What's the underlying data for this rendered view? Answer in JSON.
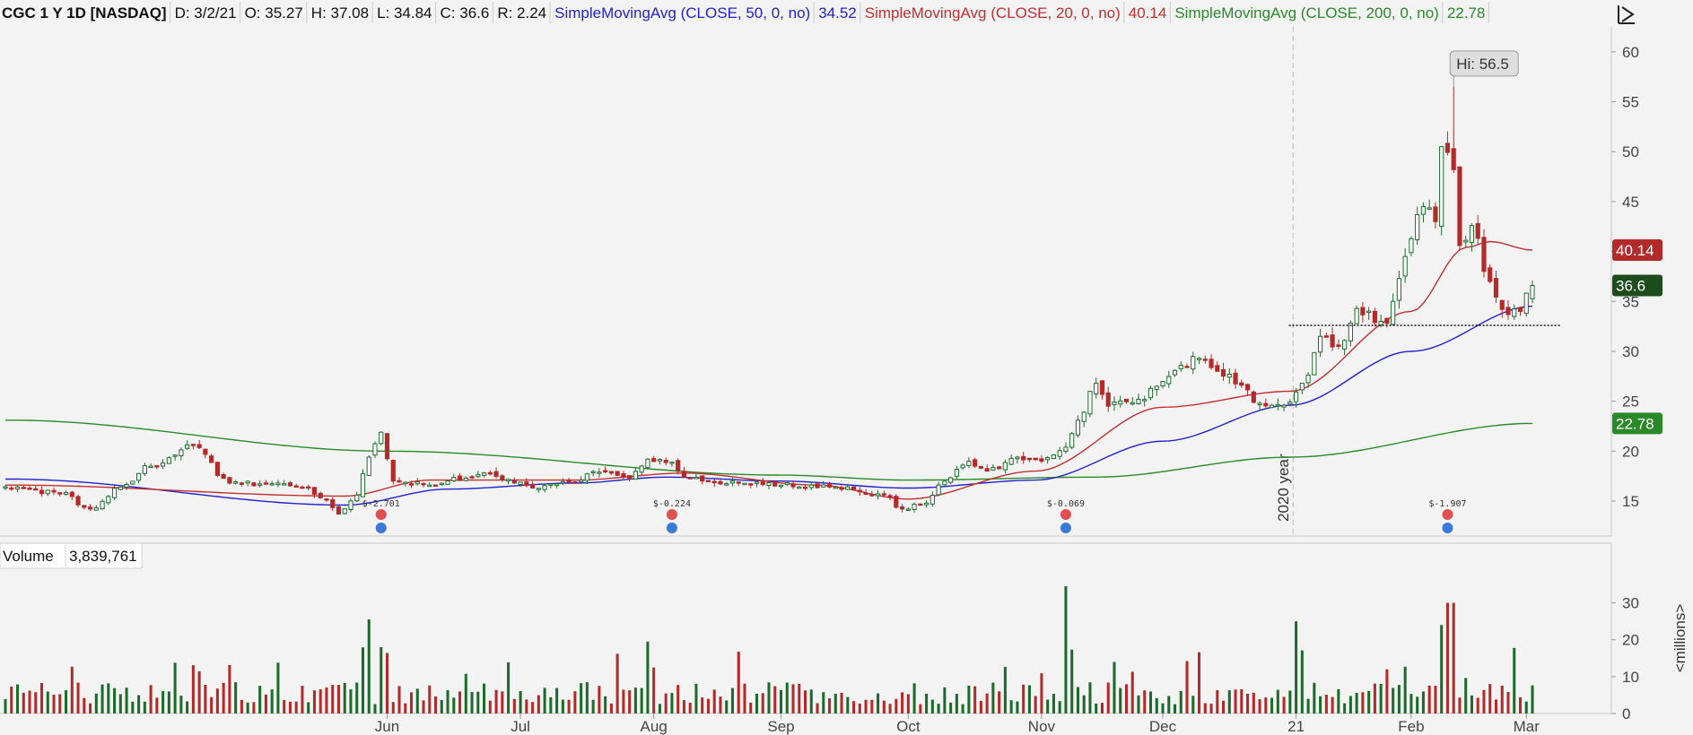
{
  "header": {
    "symbol": "CGC 1 Y 1D [NASDAQ]",
    "date": "D: 3/2/21",
    "open": "O: 35.27",
    "high": "H: 37.08",
    "low": "L: 34.84",
    "close": "C: 36.6",
    "range": "R: 2.24",
    "studies": [
      {
        "label": "SimpleMovingAvg (CLOSE, 50, 0, no)",
        "value": "34.52",
        "color": "#2222cc"
      },
      {
        "label": "SimpleMovingAvg (CLOSE, 20, 0, no)",
        "value": "40.14",
        "color": "#c03030"
      },
      {
        "label": "SimpleMovingAvg (CLOSE, 200, 0, no)",
        "value": "22.78",
        "color": "#2a8a2a"
      }
    ]
  },
  "volume_panel": {
    "label": "Volume",
    "value": "3,839,761",
    "unit_label": "<millions>"
  },
  "annotations": {
    "high_label": "Hi: 56.5",
    "year_label": "2020 year",
    "price_badges": [
      {
        "text": "40.14",
        "value": 40.14,
        "color": "#b22a2a"
      },
      {
        "text": "36.6",
        "value": 36.6,
        "color": "#1d4d1d"
      },
      {
        "text": "22.78",
        "value": 22.78,
        "color": "#2a8a2a"
      }
    ],
    "support_level": 32.6,
    "earnings": [
      {
        "date": "2020-05-29",
        "text": "$-2.701"
      },
      {
        "date": "2020-08-06",
        "text": "$-0.224"
      },
      {
        "date": "2020-11-06",
        "text": "$-0.069"
      },
      {
        "date": "2021-02-09",
        "text": "$-1.907"
      }
    ]
  },
  "colors": {
    "up": "#1d6b2c",
    "down": "#b22a2a",
    "background": "#f3f3f3"
  },
  "chart_data": {
    "type": "candlestick",
    "x_tick_labels": [
      {
        "date": "2020-06-01",
        "label": "Jun"
      },
      {
        "date": "2020-07-01",
        "label": "Jul"
      },
      {
        "date": "2020-08-03",
        "label": "Aug"
      },
      {
        "date": "2020-09-01",
        "label": "Sep"
      },
      {
        "date": "2020-10-01",
        "label": "Oct"
      },
      {
        "date": "2020-11-02",
        "label": "Nov"
      },
      {
        "date": "2020-12-01",
        "label": "Dec"
      },
      {
        "date": "2021-01-04",
        "label": "21"
      },
      {
        "date": "2021-02-01",
        "label": "Feb"
      },
      {
        "date": "2021-03-01",
        "label": "Mar"
      }
    ],
    "price_axis": {
      "ylim": [
        11.5,
        62.5
      ],
      "ticks": [
        15,
        20,
        25,
        30,
        35,
        40,
        45,
        50,
        55,
        60
      ]
    },
    "volume_axis": {
      "ylim": [
        0,
        35
      ],
      "ticks": [
        0,
        10,
        20,
        30
      ],
      "unit": "millions"
    },
    "price_anchors": [
      [
        "2020-03-03",
        16.3
      ],
      [
        "2020-03-13",
        15.8
      ],
      [
        "2020-03-20",
        14.2
      ],
      [
        "2020-03-27",
        16.4
      ],
      [
        "2020-04-03",
        18.5
      ],
      [
        "2020-04-15",
        20.6
      ],
      [
        "2020-04-23",
        16.8
      ],
      [
        "2020-05-01",
        16.7
      ],
      [
        "2020-05-11",
        16.3
      ],
      [
        "2020-05-15",
        15.2
      ],
      [
        "2020-05-19",
        13.7
      ],
      [
        "2020-05-22",
        15.6
      ],
      [
        "2020-05-27",
        19.4
      ],
      [
        "2020-05-29",
        21.9
      ],
      [
        "2020-06-02",
        17.0
      ],
      [
        "2020-06-10",
        16.6
      ],
      [
        "2020-06-18",
        17.3
      ],
      [
        "2020-06-24",
        17.8
      ],
      [
        "2020-06-30",
        16.8
      ],
      [
        "2020-07-06",
        16.3
      ],
      [
        "2020-07-14",
        16.9
      ],
      [
        "2020-07-21",
        17.9
      ],
      [
        "2020-07-28",
        17.2
      ],
      [
        "2020-07-31",
        19.2
      ],
      [
        "2020-08-06",
        18.9
      ],
      [
        "2020-08-10",
        17.4
      ],
      [
        "2020-08-21",
        16.8
      ],
      [
        "2020-09-01",
        16.6
      ],
      [
        "2020-09-15",
        16.4
      ],
      [
        "2020-09-25",
        15.7
      ],
      [
        "2020-09-30",
        14.2
      ],
      [
        "2020-10-06",
        14.8
      ],
      [
        "2020-10-09",
        17.0
      ],
      [
        "2020-10-15",
        19.0
      ],
      [
        "2020-10-20",
        18.0
      ],
      [
        "2020-10-27",
        19.4
      ],
      [
        "2020-11-02",
        19.0
      ],
      [
        "2020-11-06",
        20.4
      ],
      [
        "2020-11-10",
        23.1
      ],
      [
        "2020-11-13",
        26.8
      ],
      [
        "2020-11-17",
        24.5
      ],
      [
        "2020-11-24",
        25.2
      ],
      [
        "2020-11-30",
        26.5
      ],
      [
        "2020-12-04",
        28.6
      ],
      [
        "2020-12-09",
        29.3
      ],
      [
        "2020-12-14",
        28.0
      ],
      [
        "2020-12-18",
        26.6
      ],
      [
        "2020-12-23",
        24.8
      ],
      [
        "2020-12-30",
        24.6
      ],
      [
        "2021-01-05",
        26.8
      ],
      [
        "2021-01-08",
        31.5
      ],
      [
        "2021-01-13",
        30.5
      ],
      [
        "2021-01-19",
        34.3
      ],
      [
        "2021-01-26",
        32.8
      ],
      [
        "2021-01-29",
        39.5
      ],
      [
        "2021-02-03",
        44.5
      ],
      [
        "2021-02-05",
        43.0
      ],
      [
        "2021-02-08",
        50.5
      ],
      [
        "2021-02-10",
        48.2
      ],
      [
        "2021-02-11",
        40.6
      ],
      [
        "2021-02-16",
        42.6
      ],
      [
        "2021-02-19",
        37.0
      ],
      [
        "2021-02-23",
        34.2
      ],
      [
        "2021-02-26",
        34.0
      ],
      [
        "2021-03-02",
        36.6
      ]
    ],
    "ohlc_last": {
      "date": "2021-03-02",
      "open": 35.27,
      "high": 37.08,
      "low": 34.84,
      "close": 36.6
    },
    "high_of_period": {
      "date": "2021-02-10",
      "value": 56.5
    },
    "sma50_anchors": [
      [
        "2020-03-03",
        17.2
      ],
      [
        "2020-05-20",
        14.6
      ],
      [
        "2020-06-15",
        16.2
      ],
      [
        "2020-07-15",
        16.8
      ],
      [
        "2020-08-05",
        17.4
      ],
      [
        "2020-09-01",
        17.0
      ],
      [
        "2020-10-01",
        16.3
      ],
      [
        "2020-11-01",
        17.1
      ],
      [
        "2020-12-01",
        21.0
      ],
      [
        "2020-12-31",
        24.6
      ],
      [
        "2021-02-01",
        30.0
      ],
      [
        "2021-03-02",
        34.52
      ]
    ],
    "sma20_anchors": [
      [
        "2020-03-03",
        16.6
      ],
      [
        "2020-05-20",
        15.5
      ],
      [
        "2020-06-10",
        17.1
      ],
      [
        "2020-07-15",
        17.1
      ],
      [
        "2020-08-10",
        17.8
      ],
      [
        "2020-09-10",
        16.6
      ],
      [
        "2020-10-01",
        15.2
      ],
      [
        "2020-11-01",
        18.0
      ],
      [
        "2020-12-01",
        24.4
      ],
      [
        "2020-12-31",
        26.0
      ],
      [
        "2021-02-01",
        34.0
      ],
      [
        "2021-02-15",
        40.4
      ],
      [
        "2021-02-20",
        41.0
      ],
      [
        "2021-03-02",
        40.14
      ]
    ],
    "sma200_anchors": [
      [
        "2020-03-03",
        23.1
      ],
      [
        "2020-06-01",
        20.0
      ],
      [
        "2020-09-01",
        17.6
      ],
      [
        "2020-10-01",
        17.1
      ],
      [
        "2020-11-15",
        17.4
      ],
      [
        "2020-12-31",
        19.4
      ],
      [
        "2021-03-02",
        22.78
      ]
    ],
    "volume_spikes": [
      [
        "2020-05-27",
        25.5
      ],
      [
        "2020-05-29",
        18.0
      ],
      [
        "2020-07-31",
        19.5
      ],
      [
        "2020-11-06",
        34.5
      ],
      [
        "2020-11-09",
        17.3
      ],
      [
        "2021-01-04",
        25.0
      ],
      [
        "2021-01-05",
        17.1
      ],
      [
        "2021-02-08",
        24.0
      ],
      [
        "2021-02-09",
        30.0
      ],
      [
        "2021-02-10",
        30.0
      ]
    ]
  }
}
